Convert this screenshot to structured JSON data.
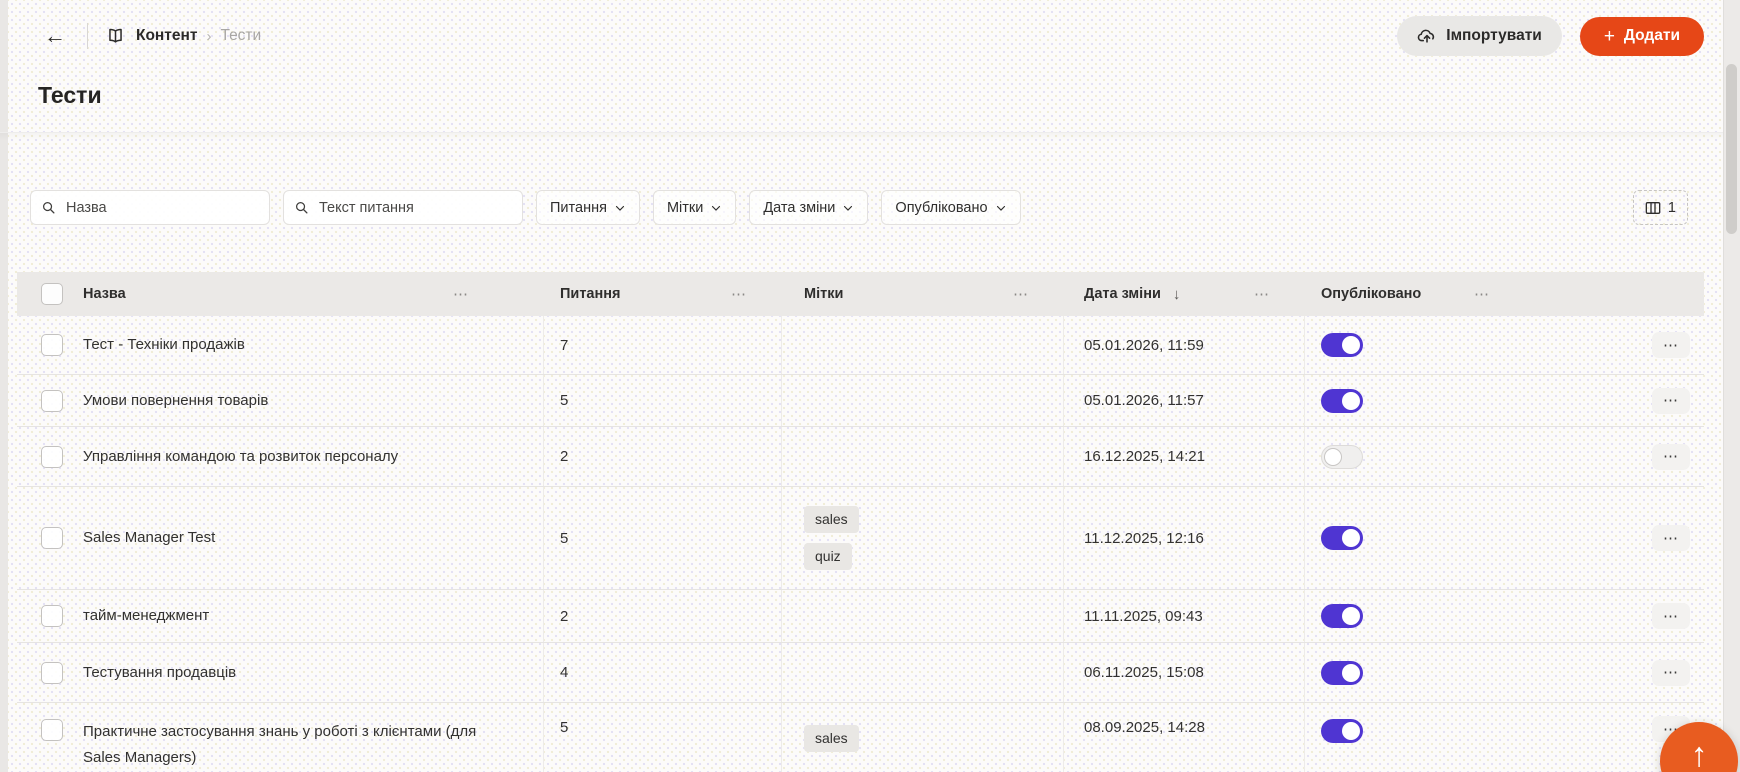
{
  "topbar": {
    "breadcrumb": {
      "section": "Контент",
      "current": "Тести"
    },
    "import_label": "Імпортувати",
    "add_label": "Додати"
  },
  "page": {
    "title": "Тести"
  },
  "filters": {
    "search_name_placeholder": "Назва",
    "search_question_placeholder": "Текст питання",
    "dropdowns": [
      "Питання",
      "Мітки",
      "Дата зміни",
      "Опубліковано"
    ],
    "columns_button_count": "1"
  },
  "table": {
    "columns": [
      "Назва",
      "Питання",
      "Мітки",
      "Дата зміни",
      "Опубліковано"
    ],
    "sorted_by": "Дата зміни",
    "sort_direction": "desc",
    "rows": [
      {
        "name": "Тест - Техніки продажів",
        "questions": "7",
        "tags": [],
        "modified": "05.01.2026, 11:59",
        "published": true
      },
      {
        "name": "Умови повернення товарів",
        "questions": "5",
        "tags": [],
        "modified": "05.01.2026, 11:57",
        "published": true
      },
      {
        "name": "Управління командою та розвиток персоналу",
        "questions": "2",
        "tags": [],
        "modified": "16.12.2025, 14:21",
        "published": false
      },
      {
        "name": "Sales Manager Test",
        "questions": "5",
        "tags": [
          "sales",
          "quiz"
        ],
        "modified": "11.12.2025, 12:16",
        "published": true
      },
      {
        "name": "тайм-менеджмент",
        "questions": "2",
        "tags": [],
        "modified": "11.11.2025, 09:43",
        "published": true
      },
      {
        "name": "Тестування продавців",
        "questions": "4",
        "tags": [],
        "modified": "06.11.2025, 15:08",
        "published": true
      },
      {
        "name": "Практичне застосування знань у роботі з клієнтами (для Sales Managers)",
        "questions": "5",
        "tags": [
          "sales"
        ],
        "modified": "08.09.2025, 14:28",
        "published": true
      }
    ]
  },
  "icons": {
    "back": "←",
    "breadcrumb_separator": "›",
    "plus": "+",
    "sort_desc": "↓",
    "ellipsis": "⋯",
    "scroll_top": "↑"
  },
  "colors": {
    "accent_orange": "#e64717",
    "fab_orange": "#e85c20",
    "toggle_on_violet": "#4f35d2",
    "table_header_bg": "#ebe9e7",
    "tag_bg": "#e9e7e4",
    "text_primary": "#323130",
    "text_muted": "#a8a6a4"
  }
}
